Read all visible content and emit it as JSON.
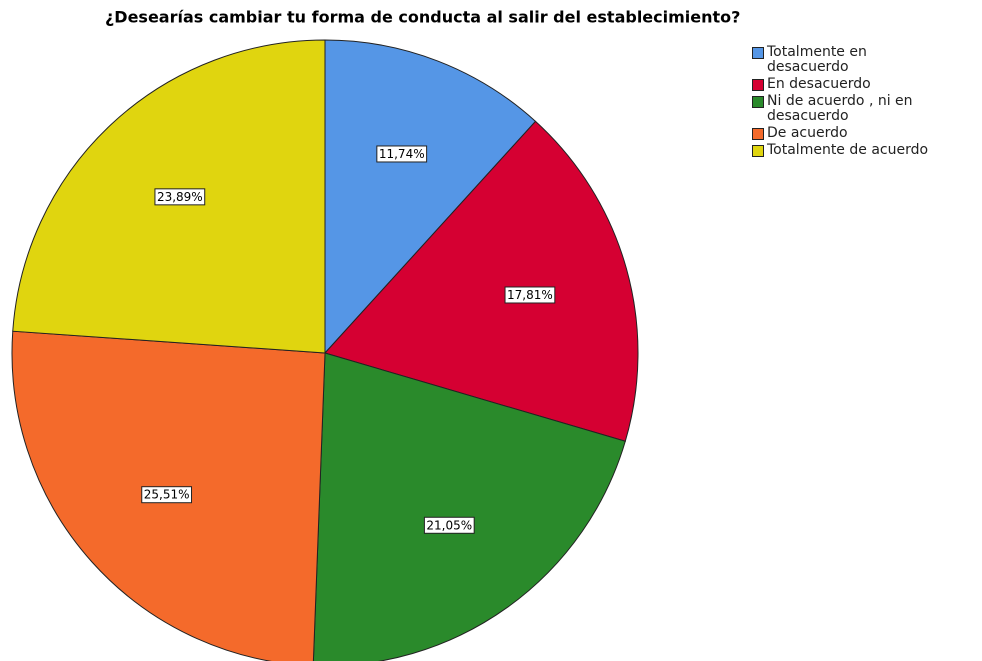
{
  "chart_data": {
    "type": "pie",
    "title": "¿Desearías cambiar tu forma de conducta al salir del establecimiento?",
    "categories": [
      "Totalmente en desacuerdo",
      "En desacuerdo",
      "Ni de acuerdo , ni en desacuerdo",
      "De acuerdo",
      "Totalmente de acuerdo"
    ],
    "values": [
      11.74,
      17.81,
      21.05,
      25.51,
      23.89
    ],
    "value_labels": [
      "11,74%",
      "17,81%",
      "21,05%",
      "25,51%",
      "23,89%"
    ],
    "colors": [
      "#5596e6",
      "#d50032",
      "#2a8a2b",
      "#f46a2b",
      "#e0d50f"
    ],
    "legend": "top-right"
  }
}
